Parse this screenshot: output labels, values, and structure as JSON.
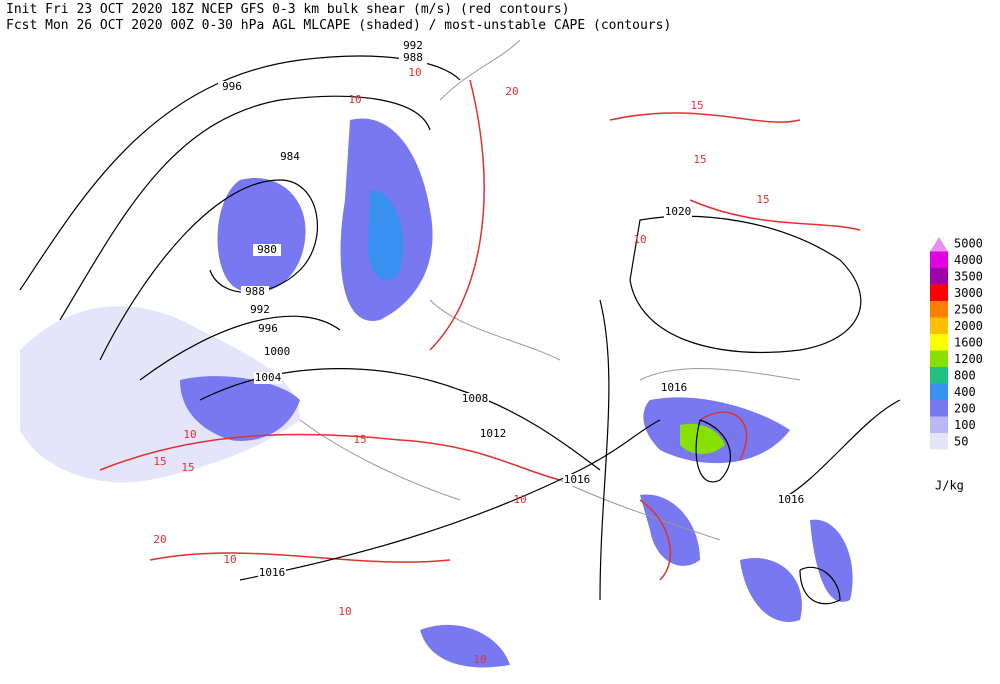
{
  "header": {
    "line1": "Init  Fri 23 OCT 2020 18Z   NCEP GFS 0-3 km bulk shear (m/s) (red contours)",
    "line2": "Fcst Mon 26 OCT 2020 00Z  0-30 hPa AGL MLCAPE (shaded) / most-unstable CAPE (contours)"
  },
  "legend": {
    "items": [
      {
        "label": "5000",
        "color": "#e890f0"
      },
      {
        "label": "4000",
        "color": "#e000e0"
      },
      {
        "label": "3500",
        "color": "#a000a8"
      },
      {
        "label": "3000",
        "color": "#ff0000"
      },
      {
        "label": "2500",
        "color": "#ff8000"
      },
      {
        "label": "2000",
        "color": "#ffc000"
      },
      {
        "label": "1600",
        "color": "#ffff00"
      },
      {
        "label": "1200",
        "color": "#88e000"
      },
      {
        "label": "800",
        "color": "#20c080"
      },
      {
        "label": "400",
        "color": "#3890f0"
      },
      {
        "label": "200",
        "color": "#7878f0"
      },
      {
        "label": "100",
        "color": "#b8b8f4"
      },
      {
        "label": "50",
        "color": "#e4e4fa"
      }
    ],
    "unit": "J/kg"
  },
  "isobar_labels": [
    "992",
    "988",
    "996",
    "984",
    "980",
    "988",
    "992",
    "996",
    "1000",
    "1004",
    "1008",
    "1012",
    "1016",
    "1016",
    "1016",
    "1016",
    "1020"
  ],
  "shear_labels": [
    "10",
    "10",
    "10",
    "15",
    "15",
    "20",
    "15",
    "15",
    "20",
    "10",
    "15",
    "10",
    "10",
    "15",
    "10",
    "10"
  ]
}
